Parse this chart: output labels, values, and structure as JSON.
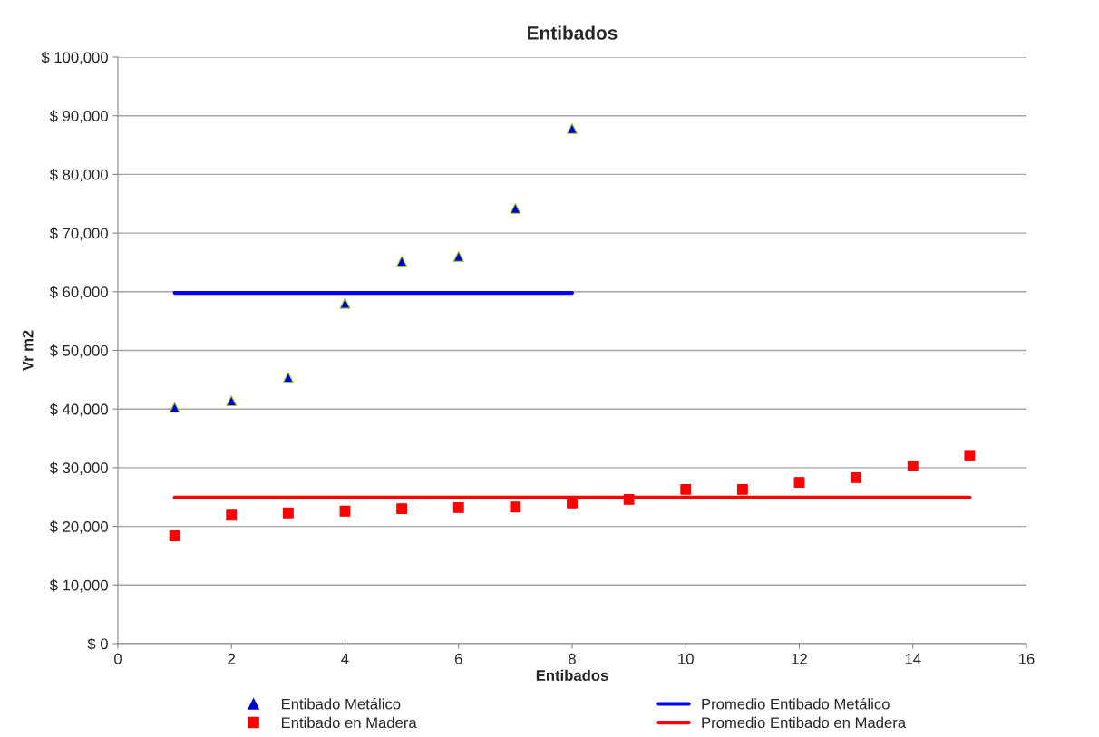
{
  "chart_data": {
    "type": "scatter",
    "title": "Entibados",
    "xlabel": "Entibados",
    "ylabel": "Vr m2",
    "xlim": [
      0,
      16
    ],
    "xticks": [
      0,
      2,
      4,
      6,
      8,
      10,
      12,
      14,
      16
    ],
    "ylim": [
      0,
      100000
    ],
    "yticks": [
      {
        "value": 0,
        "label": "$ 0"
      },
      {
        "value": 10000,
        "label": "$ 10,000"
      },
      {
        "value": 20000,
        "label": "$ 20,000"
      },
      {
        "value": 30000,
        "label": "$ 30,000"
      },
      {
        "value": 40000,
        "label": "$ 40,000"
      },
      {
        "value": 50000,
        "label": "$ 50,000"
      },
      {
        "value": 60000,
        "label": "$ 60,000"
      },
      {
        "value": 70000,
        "label": "$ 70,000"
      },
      {
        "value": 80000,
        "label": "$ 80,000"
      },
      {
        "value": 90000,
        "label": "$ 90,000"
      },
      {
        "value": 100000,
        "label": "$ 100,000"
      }
    ],
    "grid": "y",
    "legend": "bottom",
    "series": [
      {
        "name": "Entibado Metálico",
        "marker": "triangle",
        "color": "#0000cc",
        "x": [
          1,
          2,
          3,
          4,
          5,
          6,
          7,
          8
        ],
        "values": [
          40300,
          41400,
          45400,
          58000,
          65200,
          66000,
          74200,
          87800
        ]
      },
      {
        "name": "Entibado en Madera",
        "marker": "square",
        "color": "#ff0000",
        "x": [
          1,
          2,
          3,
          4,
          5,
          6,
          7,
          8,
          9,
          10,
          11,
          12,
          13,
          14,
          15
        ],
        "values": [
          18400,
          21900,
          22300,
          22600,
          23000,
          23200,
          23300,
          24000,
          24600,
          26300,
          26300,
          27500,
          28300,
          30300,
          32100
        ]
      },
      {
        "name": "Promedio Entibado Metálico",
        "type": "line",
        "color": "#0000ff",
        "x": [
          1,
          8
        ],
        "values": [
          59800,
          59800
        ]
      },
      {
        "name": "Promedio Entibado en Madera",
        "type": "line",
        "color": "#ff0000",
        "x": [
          1,
          15
        ],
        "values": [
          24900,
          24900
        ]
      }
    ]
  }
}
